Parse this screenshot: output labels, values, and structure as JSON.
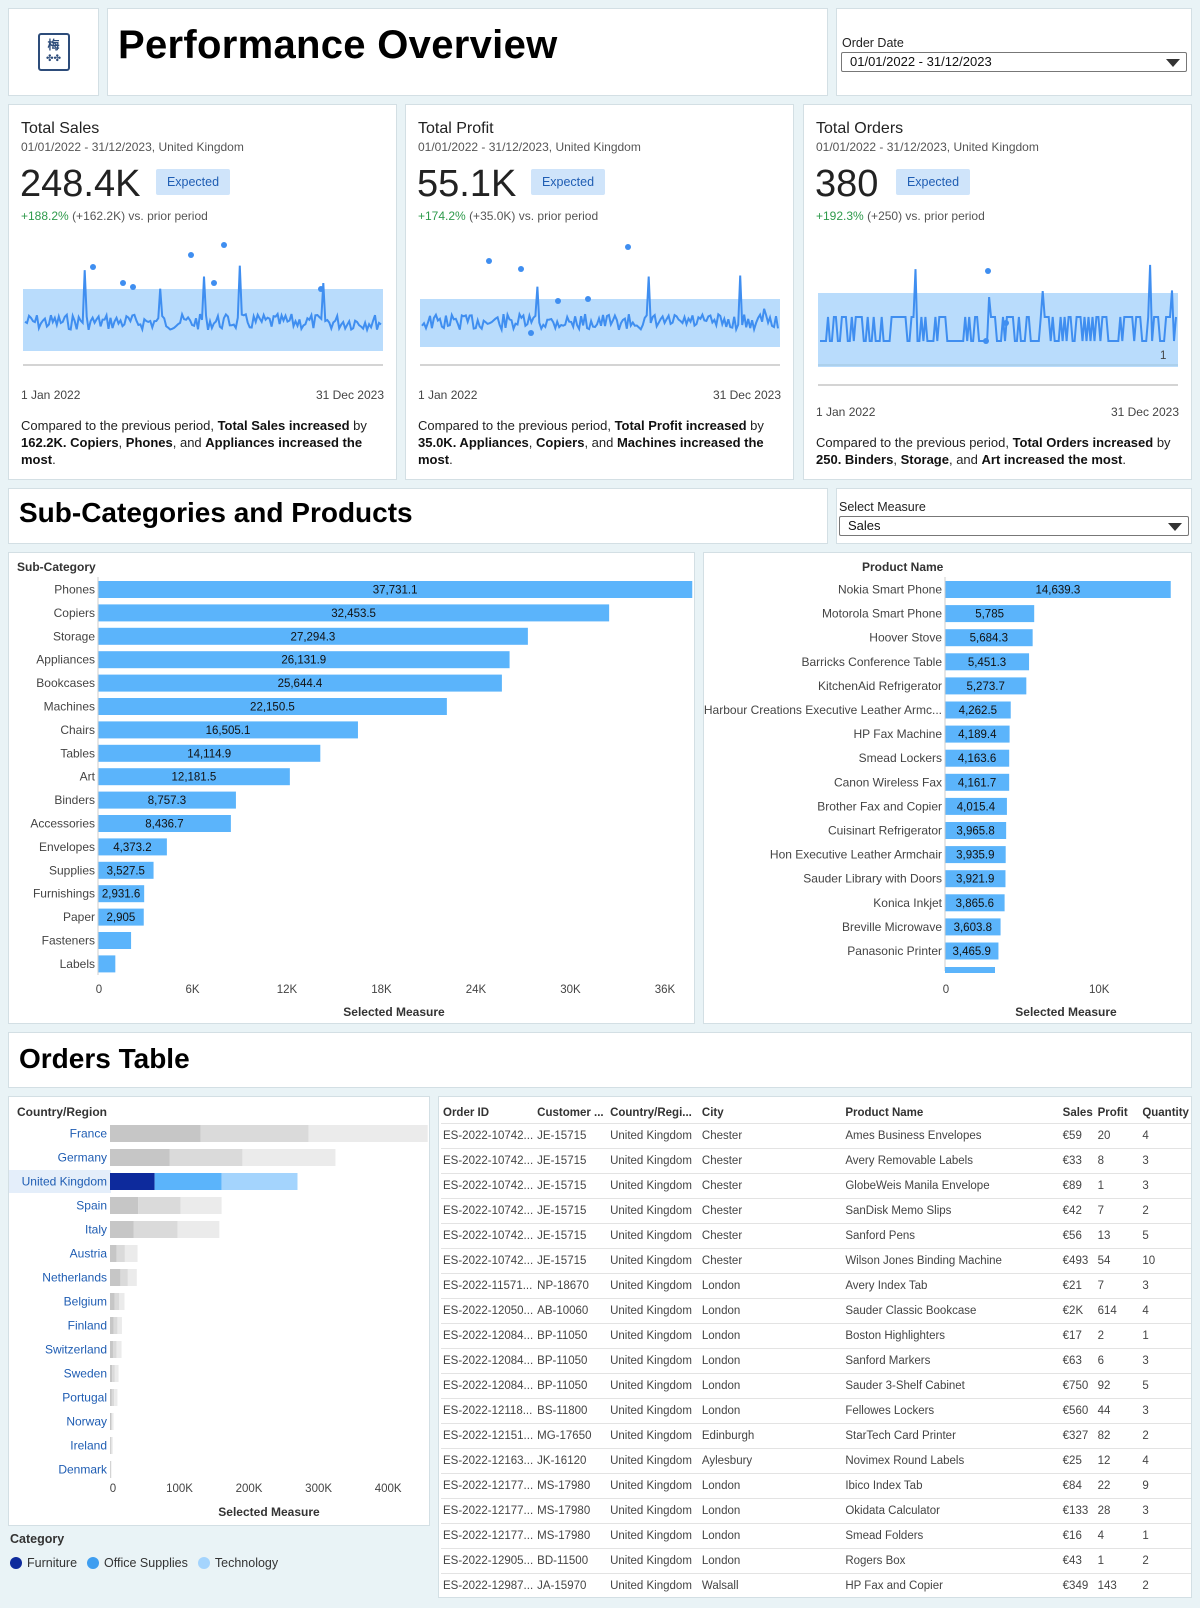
{
  "header": {
    "title": "Performance Overview",
    "logo_text": "梅",
    "filter": {
      "label": "Order Date",
      "value": "01/01/2022 - 31/12/2023"
    }
  },
  "kpis": [
    {
      "title": "Total Sales",
      "subtitle": "01/01/2022 - 31/12/2023, United Kingdom",
      "value": "248.4K",
      "badge": "Expected",
      "change_pct": "+188.2%",
      "change_abs": "(+162.2K) vs. prior period",
      "date_start": "1 Jan 2022",
      "date_end": "31 Dec 2023",
      "summary_html": "Compared to the previous period, <b>Total Sales increased</b> by <b>162.2K. Copiers</b>, <b>Phones</b>, and <b>Appliances increased the most</b>."
    },
    {
      "title": "Total Profit",
      "subtitle": "01/01/2022 - 31/12/2023, United Kingdom",
      "value": "55.1K",
      "badge": "Expected",
      "change_pct": "+174.2%",
      "change_abs": "(+35.0K) vs. prior period",
      "date_start": "1 Jan 2022",
      "date_end": "31 Dec 2023",
      "summary_html": "Compared to the previous period, <b>Total Profit increased</b> by <b>35.0K. Appliances</b>, <b>Copiers</b>, and <b>Machines increased the most</b>."
    },
    {
      "title": "Total Orders",
      "subtitle": "01/01/2022 - 31/12/2023, United Kingdom",
      "value": "380",
      "badge": "Expected",
      "change_pct": "+192.3%",
      "change_abs": "(+250) vs. prior period",
      "date_start": "1 Jan 2022",
      "date_end": "31 Dec 2023",
      "axis_value": "1",
      "summary_html": "Compared to the previous period, <b>Total Orders increased</b> by <b>250. Binders</b>, <b>Storage</b>, and <b>Art increased the most</b>."
    }
  ],
  "subcat_section": {
    "title": "Sub-Categories and Products",
    "measure_label": "Select Measure",
    "measure_value": "Sales"
  },
  "subcat_chart": {
    "type": "bar",
    "label": "Sub-Category",
    "xlabel": "Selected Measure",
    "xlim": [
      0,
      40000
    ],
    "ticks": [
      0,
      6000,
      12000,
      18000,
      24000,
      30000,
      36000
    ],
    "tick_labels": [
      "0",
      "6K",
      "12K",
      "18K",
      "24K",
      "30K",
      "36K"
    ],
    "categories": [
      "Phones",
      "Copiers",
      "Storage",
      "Appliances",
      "Bookcases",
      "Machines",
      "Chairs",
      "Tables",
      "Art",
      "Binders",
      "Accessories",
      "Envelopes",
      "Supplies",
      "Furnishings",
      "Paper",
      "Fasteners",
      "Labels"
    ],
    "values": [
      37731.1,
      32453.5,
      27294.3,
      26131.9,
      25644.4,
      22150.5,
      16505.1,
      14114.9,
      12181.5,
      8757.3,
      8436.7,
      4373.2,
      3527.5,
      2931.6,
      2905,
      2100,
      1100
    ],
    "value_labels": [
      "37,731.1",
      "32,453.5",
      "27,294.3",
      "26,131.9",
      "25,644.4",
      "22,150.5",
      "16,505.1",
      "14,114.9",
      "12,181.5",
      "8,757.3",
      "8,436.7",
      "4,373.2",
      "3,527.5",
      "2,931.6",
      "2,905",
      "",
      ""
    ],
    "color": "#5bb4fb"
  },
  "product_chart": {
    "type": "bar",
    "label": "Product Name",
    "xlabel": "Selected Measure",
    "xlim": [
      0,
      15500
    ],
    "ticks": [
      0,
      10000
    ],
    "tick_labels": [
      "0",
      "10K"
    ],
    "categories": [
      "Nokia Smart Phone",
      "Motorola Smart Phone",
      "Hoover Stove",
      "Barricks Conference Table",
      "KitchenAid Refrigerator",
      "Harbour Creations Executive Leather Armc...",
      "HP Fax Machine",
      "Smead Lockers",
      "Canon Wireless Fax",
      "Brother Fax and Copier",
      "Cuisinart Refrigerator",
      "Hon Executive Leather Armchair",
      "Sauder Library with Doors",
      "Konica Inkjet",
      "Breville Microwave",
      "Panasonic Printer"
    ],
    "values": [
      14639.3,
      5785,
      5684.3,
      5451.3,
      5273.7,
      4262.5,
      4189.4,
      4163.6,
      4161.7,
      4015.4,
      3965.8,
      3935.9,
      3921.9,
      3865.6,
      3603.8,
      3465.9
    ],
    "value_labels": [
      "14,639.3",
      "5,785",
      "5,684.3",
      "5,451.3",
      "5,273.7",
      "4,262.5",
      "4,189.4",
      "4,163.6",
      "4,161.7",
      "4,015.4",
      "3,965.8",
      "3,935.9",
      "3,921.9",
      "3,865.6",
      "3,603.8",
      "3,465.9"
    ],
    "color": "#5bb4fb"
  },
  "orders_section": {
    "title": "Orders Table"
  },
  "country_chart": {
    "type": "bar",
    "label": "Country/Region",
    "xlabel": "Selected Measure",
    "xlim": [
      0,
      430000
    ],
    "ticks": [
      0,
      100000,
      200000,
      300000,
      400000
    ],
    "tick_labels": [
      "0",
      "100K",
      "200K",
      "300K",
      "400K"
    ],
    "categories": [
      "France",
      "Germany",
      "United Kingdom",
      "Spain",
      "Italy",
      "Austria",
      "Netherlands",
      "Belgium",
      "Finland",
      "Switzerland",
      "Sweden",
      "Portugal",
      "Norway",
      "Ireland",
      "Denmark"
    ],
    "selected": "United Kingdom",
    "series": [
      {
        "name": "Furniture",
        "values": [
          122000,
          80000,
          60000,
          38000,
          32000,
          9000,
          14000,
          6000,
          5000,
          4000,
          3000,
          2500,
          1500,
          1000,
          600
        ]
      },
      {
        "name": "Office Supplies",
        "values": [
          145000,
          98000,
          90000,
          57000,
          59000,
          11000,
          10000,
          6500,
          5000,
          5000,
          3500,
          3000,
          1500,
          1200,
          600
        ]
      },
      {
        "name": "Technology",
        "values": [
          160000,
          125000,
          102000,
          55000,
          56000,
          17000,
          12000,
          7000,
          6000,
          6500,
          5000,
          4500,
          1800,
          1500,
          800
        ]
      }
    ],
    "colors": [
      "#0d2a9c",
      "#5bb4fb",
      "#a4d4fd"
    ],
    "grey_colors": [
      "#c6c6c6",
      "#dadada",
      "#ebebeb"
    ]
  },
  "legend": {
    "title": "Category",
    "items": [
      {
        "name": "Furniture",
        "color": "#0d2a9c"
      },
      {
        "name": "Office Supplies",
        "color": "#3f9ef0"
      },
      {
        "name": "Technology",
        "color": "#a4d4fd"
      }
    ]
  },
  "orders_table": {
    "columns": [
      "Order ID",
      "Customer ...",
      "Country/Regi...",
      "City",
      "Product Name",
      "Sales",
      "Profit",
      "Quantity"
    ],
    "rows": [
      [
        "ES-2022-10742...",
        "JE-15715",
        "United Kingdom",
        "Chester",
        "Ames Business Envelopes",
        "€59",
        "20",
        "4"
      ],
      [
        "ES-2022-10742...",
        "JE-15715",
        "United Kingdom",
        "Chester",
        "Avery Removable Labels",
        "€33",
        "8",
        "3"
      ],
      [
        "ES-2022-10742...",
        "JE-15715",
        "United Kingdom",
        "Chester",
        "GlobeWeis Manila Envelope",
        "€89",
        "1",
        "3"
      ],
      [
        "ES-2022-10742...",
        "JE-15715",
        "United Kingdom",
        "Chester",
        "SanDisk Memo Slips",
        "€42",
        "7",
        "2"
      ],
      [
        "ES-2022-10742...",
        "JE-15715",
        "United Kingdom",
        "Chester",
        "Sanford Pens",
        "€56",
        "13",
        "5"
      ],
      [
        "ES-2022-10742...",
        "JE-15715",
        "United Kingdom",
        "Chester",
        "Wilson Jones Binding Machine",
        "€493",
        "54",
        "10"
      ],
      [
        "ES-2022-11571...",
        "NP-18670",
        "United Kingdom",
        "London",
        "Avery Index Tab",
        "€21",
        "7",
        "3"
      ],
      [
        "ES-2022-12050...",
        "AB-10060",
        "United Kingdom",
        "London",
        "Sauder Classic Bookcase",
        "€2K",
        "614",
        "4"
      ],
      [
        "ES-2022-12084...",
        "BP-11050",
        "United Kingdom",
        "London",
        "Boston Highlighters",
        "€17",
        "2",
        "1"
      ],
      [
        "ES-2022-12084...",
        "BP-11050",
        "United Kingdom",
        "London",
        "Sanford Markers",
        "€63",
        "6",
        "3"
      ],
      [
        "ES-2022-12084...",
        "BP-11050",
        "United Kingdom",
        "London",
        "Sauder 3-Shelf Cabinet",
        "€750",
        "92",
        "5"
      ],
      [
        "ES-2022-12118...",
        "BS-11800",
        "United Kingdom",
        "London",
        "Fellowes Lockers",
        "€560",
        "44",
        "3"
      ],
      [
        "ES-2022-12151...",
        "MG-17650",
        "United Kingdom",
        "Edinburgh",
        "StarTech Card Printer",
        "€327",
        "82",
        "2"
      ],
      [
        "ES-2022-12163...",
        "JK-16120",
        "United Kingdom",
        "Aylesbury",
        "Novimex Round Labels",
        "€25",
        "12",
        "4"
      ],
      [
        "ES-2022-12177...",
        "MS-17980",
        "United Kingdom",
        "London",
        "Ibico Index Tab",
        "€84",
        "22",
        "9"
      ],
      [
        "ES-2022-12177...",
        "MS-17980",
        "United Kingdom",
        "London",
        "Okidata Calculator",
        "€133",
        "28",
        "3"
      ],
      [
        "ES-2022-12177...",
        "MS-17980",
        "United Kingdom",
        "London",
        "Smead Folders",
        "€16",
        "4",
        "1"
      ],
      [
        "ES-2022-12905...",
        "BD-11500",
        "United Kingdom",
        "London",
        "Rogers Box",
        "€43",
        "1",
        "2"
      ],
      [
        "ES-2022-12987...",
        "JA-15970",
        "United Kingdom",
        "Walsall",
        "HP Fax and Copier",
        "€349",
        "143",
        "2"
      ]
    ]
  }
}
